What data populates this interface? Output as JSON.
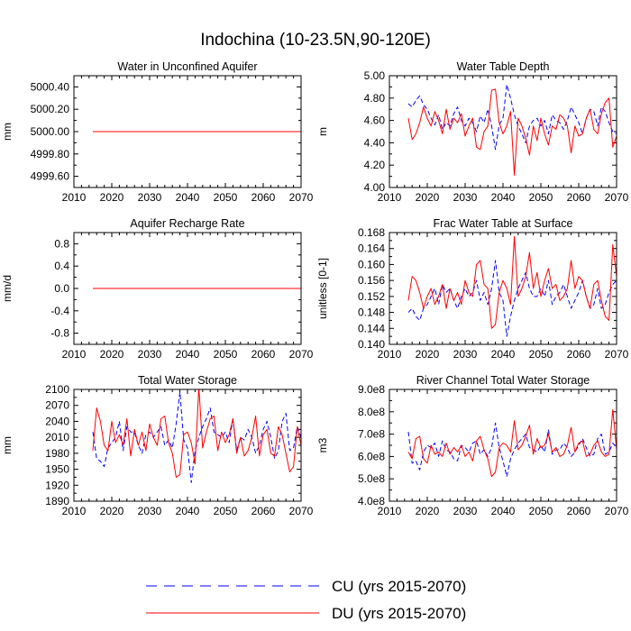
{
  "figure": {
    "title": "Indochina (10-23.5N,90-120E)"
  },
  "legend": {
    "entries": [
      {
        "label": "CU (yrs 2015-2070)",
        "color": "#0000ff",
        "style": "dashed"
      },
      {
        "label": "DU (yrs 2015-2070)",
        "color": "#ff0000",
        "style": "solid"
      }
    ]
  },
  "chart_data": [
    {
      "type": "line",
      "title": "Water in Unconfined Aquifer",
      "xlabel": "",
      "ylabel": "mm",
      "xlim": [
        2010,
        2070
      ],
      "ylim": [
        4999.5,
        5000.5
      ],
      "xticks": [
        2010,
        2020,
        2030,
        2040,
        2050,
        2060,
        2070
      ],
      "xtick_labels": [
        "2010",
        "2020",
        "2030",
        "2040",
        "2050",
        "2060",
        "2070"
      ],
      "yticks": [
        4999.6,
        4999.8,
        5000.0,
        5000.2,
        5000.4
      ],
      "ytick_labels": [
        "4999.60",
        "4999.80",
        "5000.00",
        "5000.20",
        "5000.40"
      ],
      "x_start": 2015,
      "series": [
        {
          "name": "CU",
          "color": "#0000ff",
          "style": "dashed",
          "values": [
            5000,
            5000,
            5000,
            5000,
            5000,
            5000,
            5000,
            5000,
            5000,
            5000,
            5000,
            5000,
            5000,
            5000,
            5000,
            5000,
            5000,
            5000,
            5000,
            5000,
            5000,
            5000,
            5000,
            5000,
            5000,
            5000,
            5000,
            5000,
            5000,
            5000,
            5000,
            5000,
            5000,
            5000,
            5000,
            5000,
            5000,
            5000,
            5000,
            5000,
            5000,
            5000,
            5000,
            5000,
            5000,
            5000,
            5000,
            5000,
            5000,
            5000,
            5000,
            5000,
            5000,
            5000,
            5000,
            5000
          ]
        },
        {
          "name": "DU",
          "color": "#ff0000",
          "style": "solid",
          "values": [
            5000,
            5000,
            5000,
            5000,
            5000,
            5000,
            5000,
            5000,
            5000,
            5000,
            5000,
            5000,
            5000,
            5000,
            5000,
            5000,
            5000,
            5000,
            5000,
            5000,
            5000,
            5000,
            5000,
            5000,
            5000,
            5000,
            5000,
            5000,
            5000,
            5000,
            5000,
            5000,
            5000,
            5000,
            5000,
            5000,
            5000,
            5000,
            5000,
            5000,
            5000,
            5000,
            5000,
            5000,
            5000,
            5000,
            5000,
            5000,
            5000,
            5000,
            5000,
            5000,
            5000,
            5000,
            5000,
            5000
          ]
        }
      ]
    },
    {
      "type": "line",
      "title": "Water Table Depth",
      "xlabel": "",
      "ylabel": "m",
      "xlim": [
        2010,
        2070
      ],
      "ylim": [
        4.0,
        5.0
      ],
      "xticks": [
        2010,
        2020,
        2030,
        2040,
        2050,
        2060,
        2070
      ],
      "xtick_labels": [
        "2010",
        "2020",
        "2030",
        "2040",
        "2050",
        "2060",
        "2070"
      ],
      "yticks": [
        4.0,
        4.2,
        4.4,
        4.6,
        4.8,
        5.0
      ],
      "ytick_labels": [
        "4.00",
        "4.20",
        "4.40",
        "4.60",
        "4.80",
        "5.00"
      ],
      "x_start": 2015,
      "series": [
        {
          "name": "CU",
          "color": "#0000ff",
          "style": "dashed",
          "values": [
            4.75,
            4.72,
            4.78,
            4.82,
            4.74,
            4.7,
            4.62,
            4.56,
            4.65,
            4.52,
            4.58,
            4.55,
            4.66,
            4.72,
            4.6,
            4.55,
            4.62,
            4.58,
            4.5,
            4.64,
            4.58,
            4.7,
            4.55,
            4.34,
            4.56,
            4.62,
            4.92,
            4.8,
            4.65,
            4.55,
            4.48,
            4.4,
            4.55,
            4.6,
            4.62,
            4.55,
            4.6,
            4.48,
            4.65,
            4.6,
            4.58,
            4.52,
            4.6,
            4.72,
            4.65,
            4.58,
            4.48,
            4.62,
            4.7,
            4.68,
            4.55,
            4.72,
            4.68,
            4.58,
            4.5,
            4.48
          ]
        },
        {
          "name": "DU",
          "color": "#ff0000",
          "style": "solid",
          "values": [
            4.62,
            4.43,
            4.48,
            4.58,
            4.72,
            4.62,
            4.55,
            4.68,
            4.6,
            4.48,
            4.7,
            4.52,
            4.62,
            4.58,
            4.66,
            4.46,
            4.55,
            4.62,
            4.36,
            4.34,
            4.5,
            4.55,
            4.87,
            4.88,
            4.58,
            4.48,
            4.55,
            4.68,
            4.11,
            4.62,
            4.55,
            4.44,
            4.29,
            4.55,
            4.42,
            4.62,
            4.48,
            4.38,
            4.55,
            4.52,
            4.65,
            4.62,
            4.55,
            4.31,
            4.55,
            4.46,
            4.48,
            4.62,
            4.7,
            4.52,
            4.48,
            4.66,
            4.76,
            4.8,
            4.36,
            4.46
          ]
        }
      ]
    },
    {
      "type": "line",
      "title": "Aquifer Recharge Rate",
      "xlabel": "",
      "ylabel": "mm/d",
      "xlim": [
        2010,
        2070
      ],
      "ylim": [
        -1.0,
        1.0
      ],
      "xticks": [
        2010,
        2020,
        2030,
        2040,
        2050,
        2060,
        2070
      ],
      "xtick_labels": [
        "2010",
        "2020",
        "2030",
        "2040",
        "2050",
        "2060",
        "2070"
      ],
      "yticks": [
        -0.8,
        -0.4,
        0.0,
        0.4,
        0.8
      ],
      "ytick_labels": [
        "-0.8",
        "-0.4",
        "0.0",
        "0.4",
        "0.8"
      ],
      "x_start": 2015,
      "series": [
        {
          "name": "CU",
          "color": "#0000ff",
          "style": "dashed",
          "values": [
            0,
            0,
            0,
            0,
            0,
            0,
            0,
            0,
            0,
            0,
            0,
            0,
            0,
            0,
            0,
            0,
            0,
            0,
            0,
            0,
            0,
            0,
            0,
            0,
            0,
            0,
            0,
            0,
            0,
            0,
            0,
            0,
            0,
            0,
            0,
            0,
            0,
            0,
            0,
            0,
            0,
            0,
            0,
            0,
            0,
            0,
            0,
            0,
            0,
            0,
            0,
            0,
            0,
            0,
            0,
            0
          ]
        },
        {
          "name": "DU",
          "color": "#ff0000",
          "style": "solid",
          "values": [
            0,
            0,
            0,
            0,
            0,
            0,
            0,
            0,
            0,
            0,
            0,
            0,
            0,
            0,
            0,
            0,
            0,
            0,
            0,
            0,
            0,
            0,
            0,
            0,
            0,
            0,
            0,
            0,
            0,
            0,
            0,
            0,
            0,
            0,
            0,
            0,
            0,
            0,
            0,
            0,
            0,
            0,
            0,
            0,
            0,
            0,
            0,
            0,
            0,
            0,
            0,
            0,
            0,
            0,
            0,
            0
          ]
        }
      ]
    },
    {
      "type": "line",
      "title": "Frac Water Table at Surface",
      "xlabel": "",
      "ylabel": "unitless [0-1]",
      "xlim": [
        2010,
        2070
      ],
      "ylim": [
        0.14,
        0.168
      ],
      "xticks": [
        2010,
        2020,
        2030,
        2040,
        2050,
        2060,
        2070
      ],
      "xtick_labels": [
        "2010",
        "2020",
        "2030",
        "2040",
        "2050",
        "2060",
        "2070"
      ],
      "yticks": [
        0.14,
        0.144,
        0.148,
        0.152,
        0.156,
        0.16,
        0.164,
        0.168
      ],
      "ytick_labels": [
        "0.140",
        "0.144",
        "0.148",
        "0.152",
        "0.156",
        "0.160",
        "0.164",
        "0.168"
      ],
      "x_start": 2015,
      "series": [
        {
          "name": "CU",
          "color": "#0000ff",
          "style": "dashed",
          "values": [
            0.148,
            0.149,
            0.147,
            0.146,
            0.149,
            0.15,
            0.152,
            0.154,
            0.15,
            0.155,
            0.153,
            0.154,
            0.151,
            0.149,
            0.152,
            0.154,
            0.152,
            0.153,
            0.156,
            0.151,
            0.153,
            0.15,
            0.154,
            0.161,
            0.153,
            0.151,
            0.142,
            0.147,
            0.151,
            0.154,
            0.156,
            0.158,
            0.154,
            0.152,
            0.152,
            0.154,
            0.152,
            0.156,
            0.15,
            0.152,
            0.153,
            0.155,
            0.152,
            0.149,
            0.151,
            0.153,
            0.156,
            0.152,
            0.149,
            0.15,
            0.154,
            0.149,
            0.15,
            0.153,
            0.155,
            0.156
          ]
        },
        {
          "name": "DU",
          "color": "#ff0000",
          "style": "solid",
          "values": [
            0.151,
            0.157,
            0.156,
            0.153,
            0.149,
            0.152,
            0.154,
            0.15,
            0.152,
            0.155,
            0.149,
            0.154,
            0.151,
            0.153,
            0.15,
            0.156,
            0.153,
            0.152,
            0.16,
            0.161,
            0.155,
            0.154,
            0.144,
            0.145,
            0.153,
            0.156,
            0.154,
            0.15,
            0.167,
            0.152,
            0.154,
            0.157,
            0.163,
            0.154,
            0.158,
            0.152,
            0.156,
            0.159,
            0.154,
            0.155,
            0.151,
            0.152,
            0.154,
            0.161,
            0.154,
            0.157,
            0.156,
            0.152,
            0.149,
            0.155,
            0.156,
            0.151,
            0.147,
            0.146,
            0.165,
            0.157
          ]
        }
      ]
    },
    {
      "type": "line",
      "title": "Total Water Storage",
      "xlabel": "",
      "ylabel": "mm",
      "xlim": [
        2010,
        2070
      ],
      "ylim": [
        1890,
        2100
      ],
      "xticks": [
        2010,
        2020,
        2030,
        2040,
        2050,
        2060,
        2070
      ],
      "xtick_labels": [
        "2010",
        "2020",
        "2030",
        "2040",
        "2050",
        "2060",
        "2070"
      ],
      "yticks": [
        1890,
        1920,
        1950,
        1980,
        2010,
        2040,
        2070,
        2100
      ],
      "ytick_labels": [
        "1890",
        "1920",
        "1950",
        "1980",
        "2010",
        "2040",
        "2070",
        "2100"
      ],
      "x_start": 2015,
      "series": [
        {
          "name": "CU",
          "color": "#0000ff",
          "style": "dashed",
          "values": [
            2020,
            1970,
            1965,
            1955,
            1990,
            2000,
            2010,
            2040,
            1985,
            2030,
            2020,
            2020,
            1995,
            1980,
            2015,
            2020,
            2010,
            2020,
            2030,
            1995,
            2005,
            1990,
            2035,
            2095,
            2005,
            1990,
            1925,
            1985,
            2010,
            2030,
            2045,
            2065,
            2020,
            2015,
            2010,
            2020,
            2000,
            2045,
            1985,
            2010,
            2005,
            2025,
            2010,
            1980,
            1995,
            2025,
            2040,
            2010,
            1970,
            1985,
            2040,
            2055,
            1985,
            1990,
            2030,
            2010
          ]
        },
        {
          "name": "DU",
          "color": "#ff0000",
          "style": "solid",
          "values": [
            1985,
            2065,
            2040,
            1995,
            1985,
            2040,
            2000,
            2015,
            1995,
            2045,
            1975,
            2025,
            1995,
            2020,
            1985,
            2035,
            2010,
            1995,
            2045,
            2050,
            2000,
            1980,
            1935,
            1940,
            2015,
            2020,
            2000,
            1960,
            2105,
            1990,
            2020,
            2045,
            2050,
            1985,
            2020,
            2000,
            2015,
            2045,
            1980,
            2010,
            1975,
            1985,
            2010,
            2050,
            1975,
            2015,
            2025,
            1980,
            1975,
            2030,
            2015,
            1980,
            1945,
            1955,
            2030,
            1995
          ]
        }
      ]
    },
    {
      "type": "line",
      "title": "River Channel Total Water Storage",
      "xlabel": "",
      "ylabel": "m3",
      "xlim": [
        2010,
        2070
      ],
      "ylim": [
        400000000.0,
        900000000.0
      ],
      "xticks": [
        2010,
        2020,
        2030,
        2040,
        2050,
        2060,
        2070
      ],
      "xtick_labels": [
        "2010",
        "2020",
        "2030",
        "2040",
        "2050",
        "2060",
        "2070"
      ],
      "yticks": [
        400000000.0,
        500000000.0,
        600000000.0,
        700000000.0,
        800000000.0,
        900000000.0
      ],
      "ytick_labels": [
        "4.0e8",
        "5.0e8",
        "6.0e8",
        "7.0e8",
        "8.0e8",
        "9.0e8"
      ],
      "x_start": 2015,
      "series": [
        {
          "name": "CU",
          "color": "#0000ff",
          "style": "dashed",
          "values": [
            710000000.0,
            570000000.0,
            580000000.0,
            540000000.0,
            620000000.0,
            650000000.0,
            640000000.0,
            660000000.0,
            600000000.0,
            670000000.0,
            630000000.0,
            620000000.0,
            590000000.0,
            580000000.0,
            650000000.0,
            640000000.0,
            620000000.0,
            660000000.0,
            670000000.0,
            610000000.0,
            630000000.0,
            600000000.0,
            640000000.0,
            750000000.0,
            640000000.0,
            580000000.0,
            510000000.0,
            590000000.0,
            630000000.0,
            660000000.0,
            680000000.0,
            700000000.0,
            640000000.0,
            630000000.0,
            620000000.0,
            650000000.0,
            620000000.0,
            720000000.0,
            610000000.0,
            630000000.0,
            630000000.0,
            660000000.0,
            640000000.0,
            600000000.0,
            620000000.0,
            650000000.0,
            680000000.0,
            640000000.0,
            600000000.0,
            610000000.0,
            680000000.0,
            700000000.0,
            610000000.0,
            620000000.0,
            660000000.0,
            640000000.0
          ]
        },
        {
          "name": "DU",
          "color": "#ff0000",
          "style": "solid",
          "values": [
            620000000.0,
            590000000.0,
            680000000.0,
            690000000.0,
            590000000.0,
            570000000.0,
            650000000.0,
            610000000.0,
            620000000.0,
            600000000.0,
            660000000.0,
            610000000.0,
            640000000.0,
            620000000.0,
            650000000.0,
            600000000.0,
            620000000.0,
            580000000.0,
            670000000.0,
            690000000.0,
            630000000.0,
            590000000.0,
            510000000.0,
            530000000.0,
            640000000.0,
            660000000.0,
            650000000.0,
            620000000.0,
            760000000.0,
            630000000.0,
            650000000.0,
            690000000.0,
            740000000.0,
            610000000.0,
            680000000.0,
            640000000.0,
            650000000.0,
            700000000.0,
            620000000.0,
            640000000.0,
            600000000.0,
            610000000.0,
            650000000.0,
            730000000.0,
            620000000.0,
            660000000.0,
            670000000.0,
            600000000.0,
            610000000.0,
            650000000.0,
            670000000.0,
            620000000.0,
            600000000.0,
            610000000.0,
            810000000.0,
            630000000.0
          ]
        }
      ]
    }
  ]
}
